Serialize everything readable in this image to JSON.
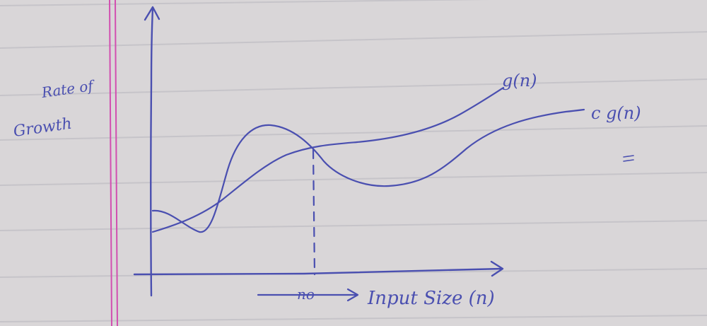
{
  "diagram": {
    "y_axis_label_line1": "Rate of",
    "y_axis_label_line2": "Growth",
    "x_axis_label": "Input Size (n)",
    "n0_label": "no",
    "curve_upper_label": "g(n)",
    "curve_lower_label": "c g(n)",
    "colors": {
      "paper": "#d9d6d8",
      "rule": "#c9c7cb",
      "margin": "#d24fb0",
      "ink": "#4a4fb0"
    }
  }
}
